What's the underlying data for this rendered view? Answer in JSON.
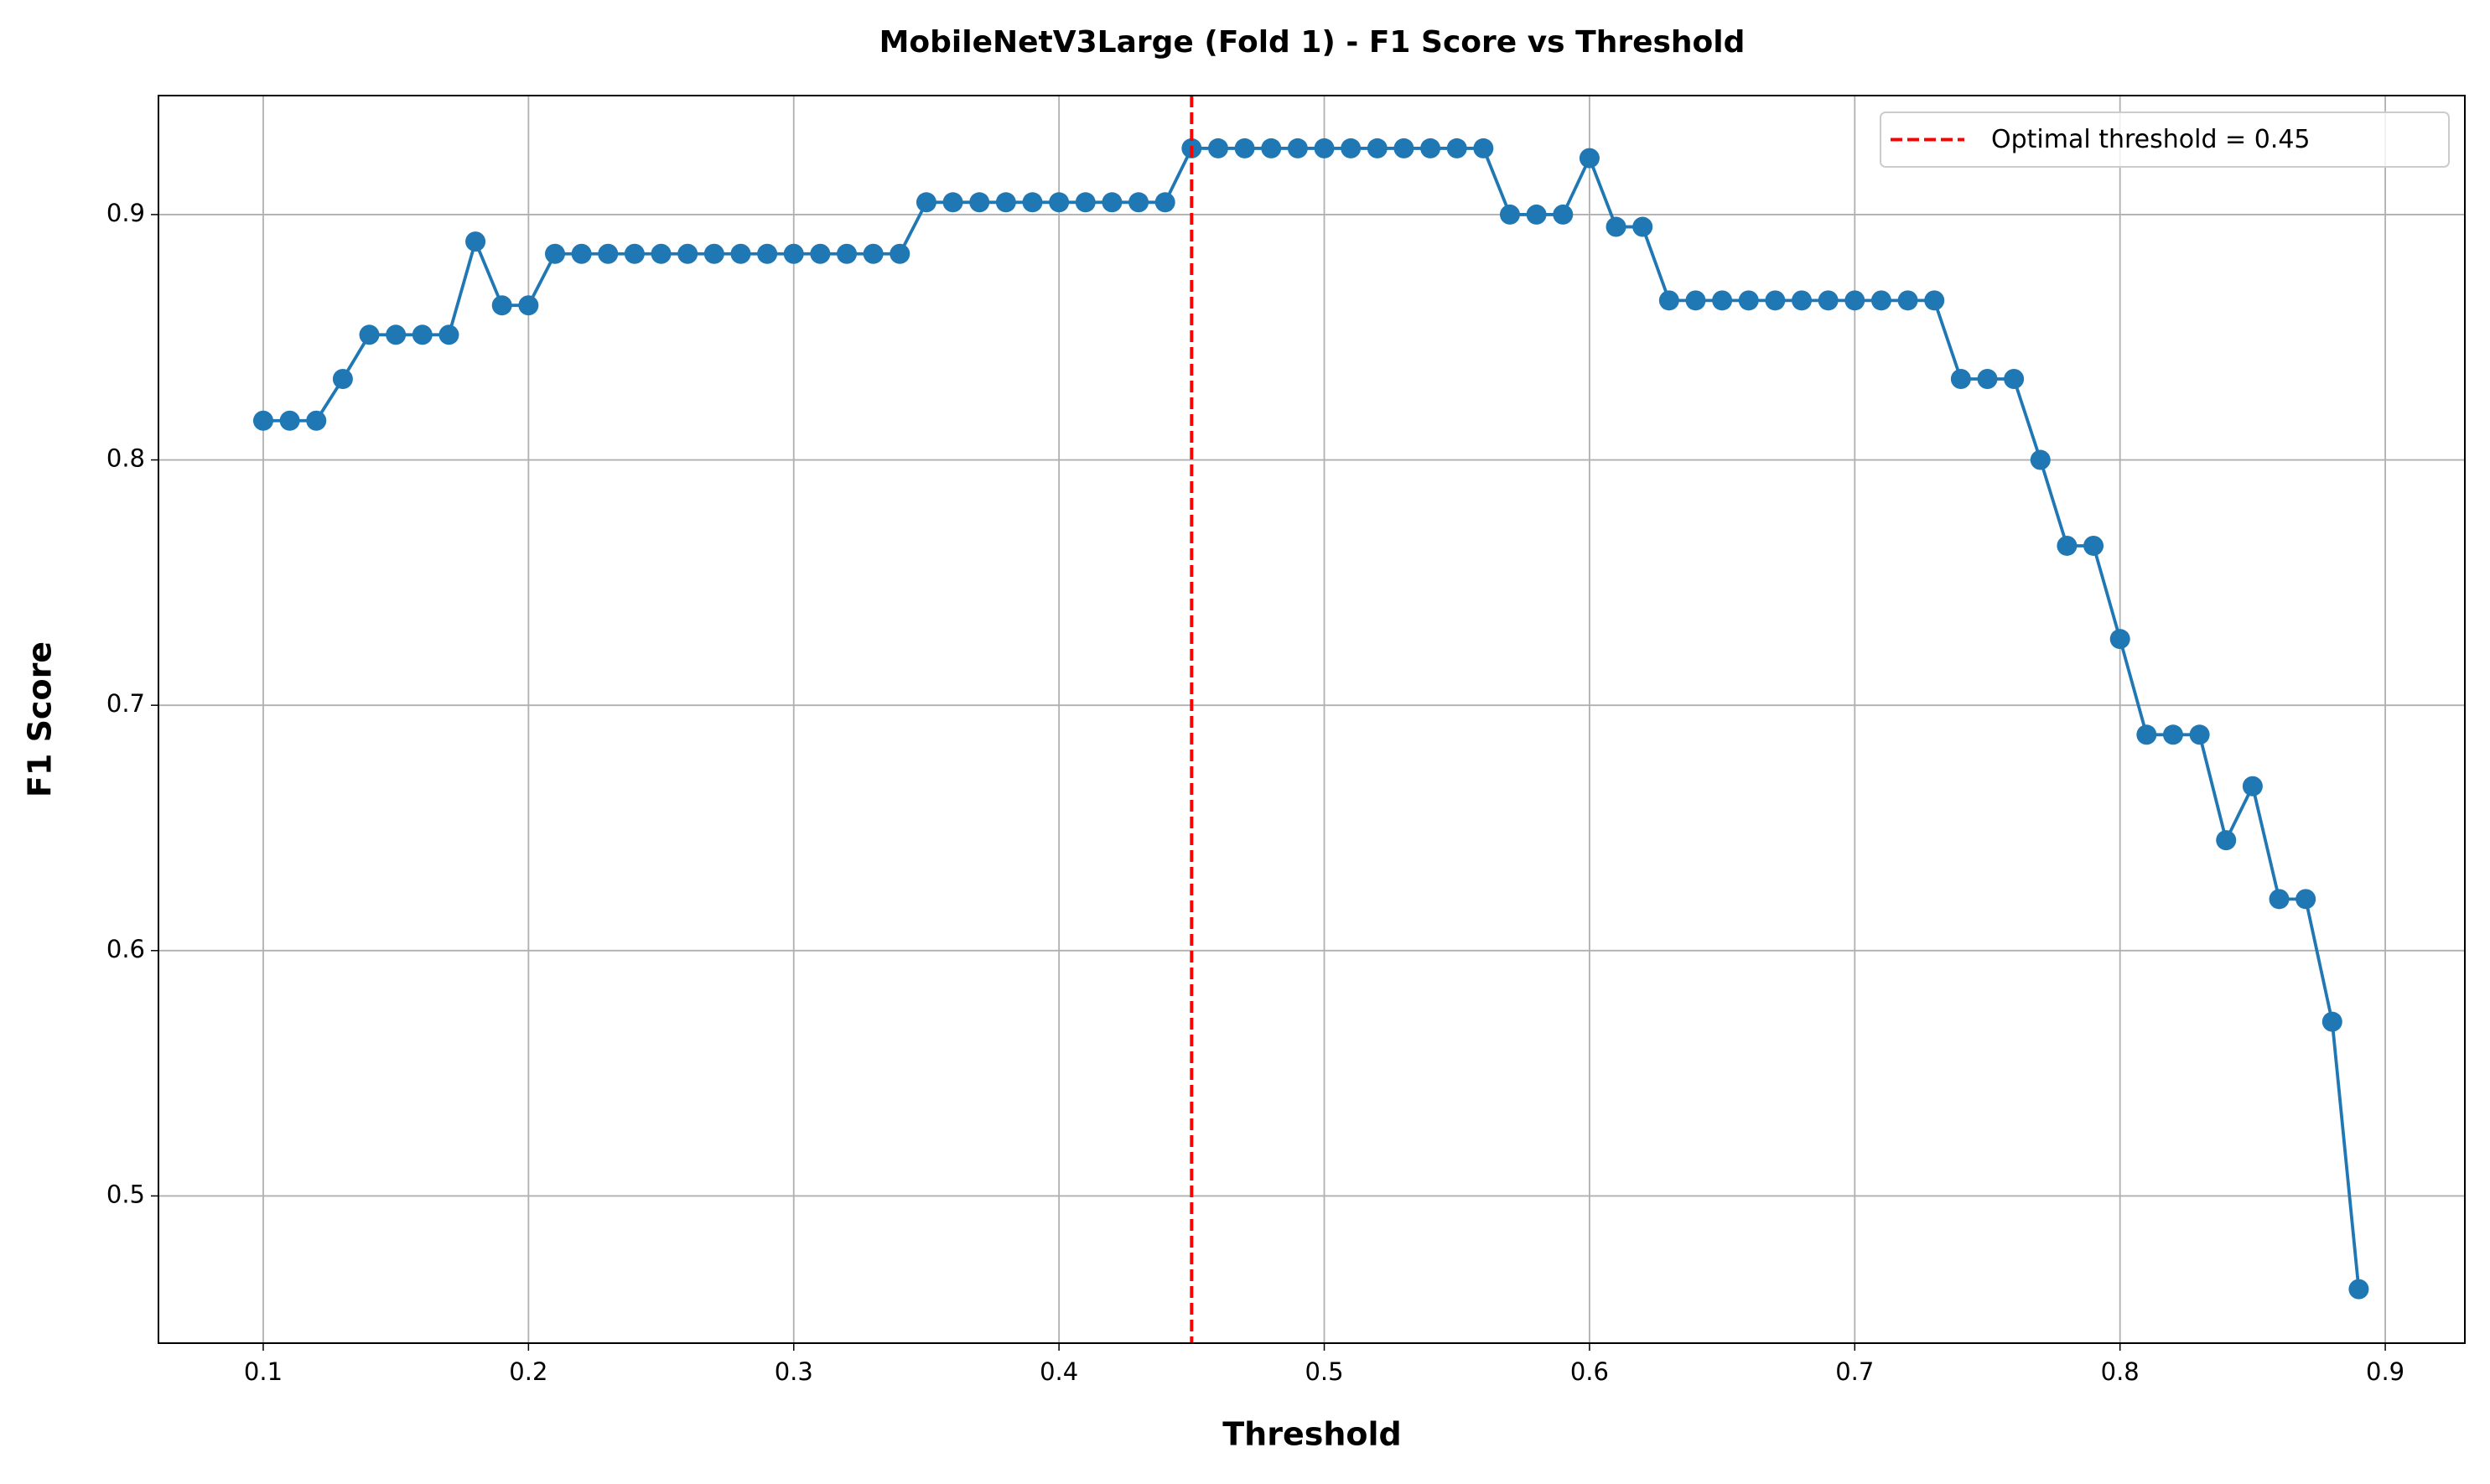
{
  "chart_data": {
    "type": "line",
    "title": "MobileNetV3Large (Fold 1) - F1 Score vs Threshold",
    "x_label": "Threshold",
    "y_label": "F1 Score",
    "x": [
      0.1,
      0.11,
      0.12,
      0.13,
      0.14,
      0.15,
      0.16,
      0.17,
      0.18,
      0.19,
      0.2,
      0.21,
      0.22,
      0.23,
      0.24,
      0.25,
      0.26,
      0.27,
      0.28,
      0.29,
      0.3,
      0.31,
      0.32,
      0.33,
      0.34,
      0.35,
      0.36,
      0.37,
      0.38,
      0.39,
      0.4,
      0.41,
      0.42,
      0.43,
      0.44,
      0.45,
      0.46,
      0.47,
      0.48,
      0.49,
      0.5,
      0.51,
      0.52,
      0.53,
      0.54,
      0.55,
      0.56,
      0.57,
      0.58,
      0.59,
      0.6,
      0.61,
      0.62,
      0.63,
      0.64,
      0.65,
      0.66,
      0.67,
      0.68,
      0.69,
      0.7,
      0.71,
      0.72,
      0.73,
      0.74,
      0.75,
      0.76,
      0.77,
      0.78,
      0.79,
      0.8,
      0.81,
      0.82,
      0.83,
      0.84,
      0.85,
      0.86,
      0.87,
      0.88,
      0.89
    ],
    "values": [
      0.816,
      0.816,
      0.816,
      0.833,
      0.851,
      0.851,
      0.851,
      0.851,
      0.889,
      0.863,
      0.863,
      0.884,
      0.884,
      0.884,
      0.884,
      0.884,
      0.884,
      0.884,
      0.884,
      0.884,
      0.884,
      0.884,
      0.884,
      0.884,
      0.884,
      0.905,
      0.905,
      0.905,
      0.905,
      0.905,
      0.905,
      0.905,
      0.905,
      0.905,
      0.905,
      0.927,
      0.927,
      0.927,
      0.927,
      0.927,
      0.927,
      0.927,
      0.927,
      0.927,
      0.927,
      0.927,
      0.927,
      0.9,
      0.9,
      0.9,
      0.923,
      0.895,
      0.895,
      0.865,
      0.865,
      0.865,
      0.865,
      0.865,
      0.865,
      0.865,
      0.865,
      0.865,
      0.865,
      0.865,
      0.833,
      0.833,
      0.833,
      0.8,
      0.765,
      0.765,
      0.727,
      0.688,
      0.688,
      0.688,
      0.645,
      0.667,
      0.621,
      0.621,
      0.571,
      0.462
    ],
    "color": "#1f77b4",
    "vline": {
      "x": 0.45,
      "label": "Optimal threshold = 0.45",
      "color": "#ff0000"
    },
    "xlim": [
      0.0605,
      0.93
    ],
    "ylim": [
      0.44,
      0.9485
    ],
    "xticks": [
      0.1,
      0.2,
      0.3,
      0.4,
      0.5,
      0.6,
      0.7,
      0.8,
      0.9
    ],
    "yticks": [
      0.5,
      0.6,
      0.7,
      0.8,
      0.9
    ],
    "grid": true,
    "legend_position": "upper-right"
  }
}
